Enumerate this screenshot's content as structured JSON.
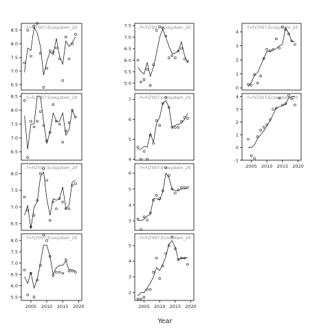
{
  "xlabel": "Year",
  "chart_data": [
    {
      "type": "scatter",
      "panel": [
        0,
        0
      ],
      "strip": ": f=FLT007:Ecosystem_20",
      "xlim": [
        2002,
        2021
      ],
      "ylim": [
        6.3,
        8.75
      ],
      "yticks": [
        6.5,
        7.0,
        7.5,
        8.0,
        8.5
      ],
      "series": [
        {
          "x": [
            2003,
            2004,
            2005,
            2006,
            2007,
            2008,
            2009,
            2010,
            2011,
            2012,
            2013,
            2014,
            2015,
            2016,
            2017,
            2018,
            2019
          ],
          "y": [
            7.3,
            8.5,
            7.55,
            8.65,
            8.75,
            7.65,
            6.4,
            7.1,
            7.75,
            7.7,
            7.85,
            7.45,
            6.65,
            8.25,
            7.45,
            8.0,
            8.35
          ]
        },
        {
          "x": [
            2003,
            2004,
            2005,
            2006,
            2007,
            2008,
            2009,
            2010,
            2011,
            2012,
            2013,
            2014,
            2015,
            2016,
            2017,
            2018,
            2019
          ],
          "y": [
            6.95,
            7.85,
            7.75,
            8.6,
            8.4,
            7.9,
            6.85,
            7.35,
            7.7,
            7.6,
            8.2,
            7.55,
            7.25,
            8.1,
            7.9,
            8.05,
            8.25
          ]
        }
      ]
    },
    {
      "type": "scatter",
      "panel": [
        0,
        1
      ],
      "strip": ": f=FLT007:Ecosystem_20",
      "xlim": [
        2002,
        2021
      ],
      "ylim": [
        4.7,
        7.6
      ],
      "yticks": [
        5.0,
        5.5,
        6.0,
        6.5,
        7.0,
        7.5
      ],
      "series": [
        {
          "x": [
            2003,
            2004,
            2005,
            2006,
            2007,
            2008,
            2009,
            2010,
            2011,
            2012,
            2013,
            2014,
            2015,
            2016,
            2017,
            2018,
            2019
          ],
          "y": [
            6.0,
            5.05,
            5.15,
            5.6,
            4.9,
            5.8,
            7.3,
            7.45,
            7.4,
            7.05,
            6.1,
            6.2,
            6.1,
            6.4,
            6.5,
            6.05,
            5.95
          ]
        },
        {
          "x": [
            2003,
            2004,
            2005,
            2006,
            2007,
            2008,
            2009,
            2010,
            2011,
            2012,
            2013,
            2014,
            2015,
            2016,
            2017,
            2018,
            2019
          ],
          "y": [
            5.7,
            5.5,
            5.4,
            5.9,
            5.3,
            5.7,
            6.3,
            7.0,
            7.35,
            7.0,
            6.6,
            6.3,
            6.3,
            6.4,
            6.8,
            6.2,
            5.9
          ]
        }
      ]
    },
    {
      "type": "scatter",
      "panel": [
        0,
        2
      ],
      "strip": ": f=FLT007:Ecosystem_20",
      "xlim": [
        2002,
        2021
      ],
      "ylim": [
        -0.15,
        4.6
      ],
      "yticks": [
        0,
        1,
        2,
        3,
        4
      ],
      "series": [
        {
          "x": [
            2004,
            2005,
            2006,
            2007,
            2008,
            2009,
            2010,
            2011,
            2012,
            2013,
            2014,
            2015,
            2016,
            2017,
            2018,
            2019
          ],
          "y": [
            0.25,
            0.2,
            0.95,
            0.35,
            0.85,
            2.1,
            2.75,
            2.65,
            2.75,
            3.5,
            2.85,
            4.35,
            4.15,
            3.85,
            3.35,
            3.1
          ]
        },
        {
          "x": [
            2004,
            2005,
            2006,
            2007,
            2008,
            2009,
            2010,
            2011,
            2012,
            2013,
            2014,
            2015,
            2016,
            2017,
            2018,
            2019
          ],
          "y": [
            0.1,
            0.4,
            0.9,
            1.1,
            1.6,
            2.1,
            2.6,
            2.6,
            2.7,
            2.8,
            3.0,
            3.1,
            4.3,
            3.9,
            3.3,
            3.3
          ]
        }
      ]
    },
    {
      "type": "scatter",
      "panel": [
        1,
        0
      ],
      "strip": ": f=FLT007:Ecosystem_20",
      "xlim": [
        2002,
        2021
      ],
      "ylim": [
        6.2,
        8.6
      ],
      "yticks": [
        6.5,
        7.0,
        7.5,
        8.0,
        8.5
      ],
      "series": [
        {
          "x": [
            2003,
            2004,
            2005,
            2006,
            2007,
            2008,
            2009,
            2010,
            2011,
            2012,
            2013,
            2014,
            2015,
            2016,
            2017,
            2018,
            2019
          ],
          "y": [
            8.35,
            6.3,
            7.6,
            7.4,
            7.6,
            7.95,
            7.45,
            6.9,
            7.2,
            8.2,
            7.6,
            7.5,
            6.85,
            7.25,
            7.55,
            8.0,
            7.75
          ]
        },
        {
          "x": [
            2003,
            2004,
            2005,
            2006,
            2007,
            2008,
            2009,
            2010,
            2011,
            2012,
            2013,
            2014,
            2015,
            2016,
            2017,
            2018,
            2019
          ],
          "y": [
            7.8,
            6.6,
            7.5,
            7.5,
            8.5,
            8.5,
            7.6,
            6.8,
            7.2,
            7.9,
            7.6,
            7.6,
            7.9,
            7.1,
            7.3,
            8.0,
            7.75
          ]
        }
      ]
    },
    {
      "type": "scatter",
      "panel": [
        1,
        1
      ],
      "strip": ": f=FLT007:Ecosystem_20",
      "xlim": [
        2002,
        2021
      ],
      "ylim": [
        3.95,
        7.3
      ],
      "yticks": [
        4.0,
        5.0,
        6.0,
        7.0
      ],
      "series": [
        {
          "x": [
            2003,
            2004,
            2005,
            2006,
            2007,
            2008,
            2009,
            2010,
            2011,
            2012,
            2013,
            2014,
            2015,
            2016,
            2017,
            2018,
            2019
          ],
          "y": [
            4.6,
            4.0,
            4.4,
            4.0,
            5.2,
            4.8,
            5.95,
            5.7,
            6.8,
            7.1,
            6.6,
            5.6,
            5.6,
            5.6,
            5.9,
            6.1,
            6.05
          ]
        },
        {
          "x": [
            2003,
            2004,
            2005,
            2006,
            2007,
            2008,
            2009,
            2010,
            2011,
            2012,
            2013,
            2014,
            2015,
            2016,
            2017,
            2018,
            2019
          ],
          "y": [
            4.5,
            4.5,
            4.65,
            4.6,
            5.3,
            4.85,
            5.8,
            6.1,
            6.8,
            6.95,
            6.6,
            5.6,
            5.7,
            5.75,
            5.8,
            6.0,
            6.3
          ]
        }
      ]
    },
    {
      "type": "scatter",
      "panel": [
        1,
        2
      ],
      "strip": ": f=FLT007:Ecosystem_20",
      "xlim": [
        2002,
        2021
      ],
      "ylim": [
        -1.0,
        4.25
      ],
      "yticks": [
        -1,
        0,
        1,
        2,
        3,
        4
      ],
      "series": [
        {
          "x": [
            2004,
            2005,
            2006,
            2007,
            2008,
            2009,
            2010,
            2011,
            2012,
            2013,
            2014,
            2015,
            2016,
            2017,
            2018,
            2019
          ],
          "y": [
            0.65,
            -0.65,
            -0.85,
            0.85,
            1.35,
            1.6,
            1.8,
            2.2,
            3.0,
            3.1,
            3.9,
            3.35,
            3.45,
            4.1,
            3.85,
            3.35
          ]
        },
        {
          "x": [
            2004,
            2005,
            2006,
            2007,
            2008,
            2009,
            2010,
            2011,
            2012,
            2013,
            2014,
            2015,
            2016,
            2017,
            2018,
            2019
          ],
          "y": [
            0.0,
            0.0,
            0.2,
            0.7,
            1.0,
            1.3,
            1.7,
            2.1,
            2.6,
            3.1,
            3.2,
            3.3,
            3.4,
            3.9,
            4.0,
            4.0
          ]
        }
      ]
    },
    {
      "type": "scatter",
      "panel": [
        2,
        0
      ],
      "strip": ": f=FLT007:Ecosystem_20",
      "xlim": [
        2002,
        2021
      ],
      "ylim": [
        6.3,
        8.3
      ],
      "yticks": [
        6.5,
        7.0,
        7.5,
        8.0
      ],
      "series": [
        {
          "x": [
            2003,
            2004,
            2005,
            2006,
            2007,
            2008,
            2009,
            2010,
            2011,
            2012,
            2013,
            2014,
            2015,
            2016,
            2017,
            2018,
            2019
          ],
          "y": [
            7.3,
            6.9,
            6.4,
            6.75,
            7.2,
            8.0,
            8.15,
            7.8,
            6.6,
            7.15,
            6.95,
            7.25,
            7.15,
            6.95,
            6.95,
            7.65,
            7.7
          ]
        },
        {
          "x": [
            2003,
            2004,
            2005,
            2006,
            2007,
            2008,
            2009,
            2010,
            2011,
            2012,
            2013,
            2014,
            2015,
            2016,
            2017,
            2018,
            2019
          ],
          "y": [
            6.75,
            7.05,
            6.35,
            7.0,
            7.15,
            7.9,
            8.05,
            7.25,
            6.75,
            7.25,
            7.2,
            7.25,
            7.6,
            6.95,
            7.05,
            7.75,
            7.8
          ]
        }
      ]
    },
    {
      "type": "scatter",
      "panel": [
        2,
        1
      ],
      "strip": ": f=FLT007:Ecosystem_20",
      "xlim": [
        2002,
        2021
      ],
      "ylim": [
        2.4,
        6.6
      ],
      "yticks": [
        3.0,
        4.0,
        5.0,
        6.0
      ],
      "series": [
        {
          "x": [
            2003,
            2004,
            2005,
            2006,
            2007,
            2008,
            2009,
            2010,
            2011,
            2012,
            2013,
            2014,
            2015,
            2016,
            2017,
            2018,
            2019
          ],
          "y": [
            3.1,
            2.45,
            3.25,
            3.05,
            3.5,
            4.3,
            4.6,
            4.4,
            4.9,
            6.35,
            5.85,
            5.0,
            4.75,
            4.95,
            5.1,
            5.1,
            5.1
          ]
        },
        {
          "x": [
            2003,
            2004,
            2005,
            2006,
            2007,
            2008,
            2009,
            2010,
            2011,
            2012,
            2013,
            2014,
            2015,
            2016,
            2017,
            2018,
            2019
          ],
          "y": [
            3.05,
            3.0,
            3.1,
            3.3,
            3.4,
            4.4,
            4.4,
            4.3,
            4.8,
            6.0,
            5.7,
            5.0,
            4.9,
            4.9,
            5.0,
            5.0,
            5.05
          ]
        }
      ]
    },
    {
      "type": "scatter",
      "panel": [
        3,
        0
      ],
      "strip": ": f=FLT007:Ecosystem_20",
      "xlim": [
        2002,
        2021
      ],
      "ylim": [
        5.35,
        8.3
      ],
      "yticks": [
        5.5,
        6.0,
        6.5,
        7.0,
        7.5,
        8.0
      ],
      "series": [
        {
          "x": [
            2003,
            2004,
            2005,
            2006,
            2007,
            2008,
            2009,
            2010,
            2011,
            2012,
            2013,
            2014,
            2015,
            2016,
            2017,
            2018,
            2019
          ],
          "y": [
            6.7,
            5.6,
            6.55,
            5.5,
            6.25,
            6.9,
            8.25,
            8.0,
            7.3,
            6.45,
            6.6,
            6.6,
            6.55,
            7.15,
            6.65,
            6.65,
            6.6
          ]
        },
        {
          "x": [
            2003,
            2004,
            2005,
            2006,
            2007,
            2008,
            2009,
            2010,
            2011,
            2012,
            2013,
            2014,
            2015,
            2016,
            2017,
            2018,
            2019
          ],
          "y": [
            6.4,
            6.1,
            6.6,
            5.9,
            6.3,
            7.0,
            7.8,
            7.8,
            7.3,
            6.5,
            6.8,
            6.9,
            6.9,
            7.1,
            6.7,
            6.7,
            6.65
          ]
        }
      ]
    },
    {
      "type": "scatter",
      "panel": [
        3,
        1
      ],
      "strip": ": f=FLT007:Ecosystem_20",
      "xlim": [
        2002,
        2021
      ],
      "ylim": [
        1.5,
        5.75
      ],
      "yticks": [
        2,
        3,
        4,
        5
      ],
      "series": [
        {
          "x": [
            2003,
            2004,
            2005,
            2006,
            2007,
            2008,
            2009,
            2010,
            2011,
            2012,
            2013,
            2014,
            2015,
            2016,
            2017,
            2018,
            2019
          ],
          "y": [
            1.6,
            1.6,
            1.7,
            2.2,
            2.2,
            3.3,
            4.2,
            2.9,
            3.7,
            4.5,
            5.0,
            5.55,
            4.8,
            4.1,
            4.2,
            4.2,
            3.8
          ]
        },
        {
          "x": [
            2003,
            2004,
            2005,
            2006,
            2007,
            2008,
            2009,
            2010,
            2011,
            2012,
            2013,
            2014,
            2015,
            2016,
            2017,
            2018,
            2019
          ],
          "y": [
            1.8,
            2.0,
            2.0,
            2.3,
            2.6,
            3.0,
            3.6,
            3.4,
            3.8,
            4.3,
            5.1,
            5.3,
            4.9,
            4.1,
            4.2,
            4.2,
            4.25
          ]
        }
      ]
    }
  ]
}
